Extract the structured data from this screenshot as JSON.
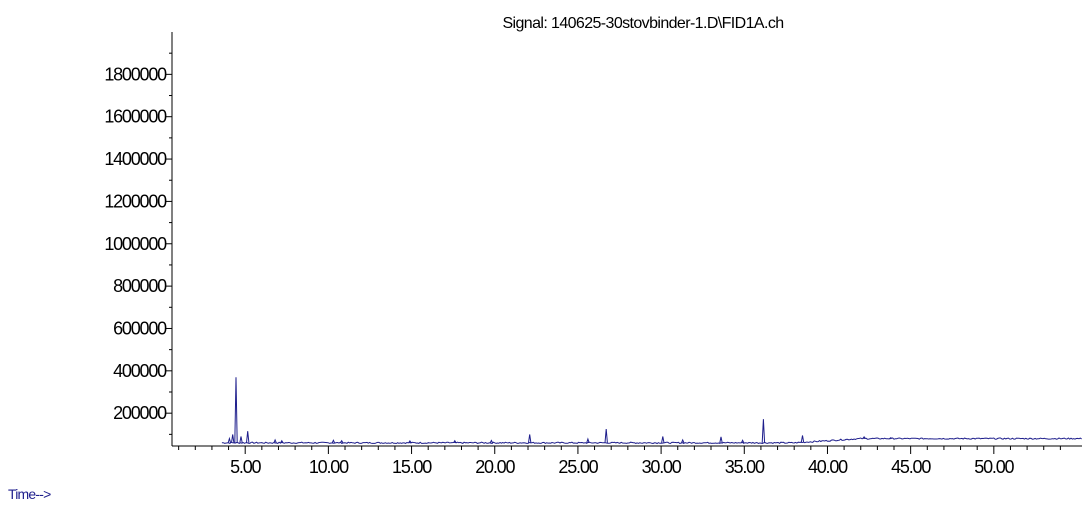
{
  "chart_data": {
    "type": "line",
    "title": "Signal: 140625-30stovbinder-1.D\\FID1A.ch",
    "xlabel": "Time-->",
    "ylabel": "",
    "xlim": [
      0.6,
      55.3
    ],
    "ylim": [
      45000,
      2000000
    ],
    "x_ticks": [
      5,
      10,
      15,
      20,
      25,
      30,
      35,
      40,
      45,
      50
    ],
    "x_tick_labels": [
      "5.00",
      "10.00",
      "15.00",
      "20.00",
      "25.00",
      "30.00",
      "35.00",
      "40.00",
      "45.00",
      "50.00"
    ],
    "y_ticks": [
      200000,
      400000,
      600000,
      800000,
      1000000,
      1200000,
      1400000,
      1600000,
      1800000
    ],
    "y_tick_labels": [
      "200000",
      "400000",
      "600000",
      "800000",
      "1000000",
      "1200000",
      "1400000",
      "1600000",
      "1800000"
    ],
    "grid": false,
    "baseline": 60000,
    "series": [
      {
        "color": "#1e1e8c",
        "peaks": [
          {
            "x": 4.05,
            "y": 80000
          },
          {
            "x": 4.25,
            "y": 100000
          },
          {
            "x": 4.45,
            "y": 370000
          },
          {
            "x": 4.75,
            "y": 90000
          },
          {
            "x": 5.15,
            "y": 115000
          },
          {
            "x": 6.8,
            "y": 74000
          },
          {
            "x": 7.2,
            "y": 70000
          },
          {
            "x": 10.3,
            "y": 72000
          },
          {
            "x": 10.8,
            "y": 70000
          },
          {
            "x": 14.9,
            "y": 69000
          },
          {
            "x": 17.6,
            "y": 70000
          },
          {
            "x": 19.8,
            "y": 71000
          },
          {
            "x": 22.1,
            "y": 100000
          },
          {
            "x": 25.6,
            "y": 78000
          },
          {
            "x": 26.7,
            "y": 125000
          },
          {
            "x": 30.1,
            "y": 90000
          },
          {
            "x": 31.3,
            "y": 74000
          },
          {
            "x": 33.6,
            "y": 88000
          },
          {
            "x": 34.9,
            "y": 72000
          },
          {
            "x": 36.15,
            "y": 172000
          },
          {
            "x": 38.5,
            "y": 95000
          },
          {
            "x": 42.2,
            "y": 88000
          },
          {
            "x": 43.8,
            "y": 84000
          }
        ],
        "rise": {
          "start_x": 38.0,
          "end_x": 42.0,
          "level": 80000
        }
      }
    ]
  }
}
